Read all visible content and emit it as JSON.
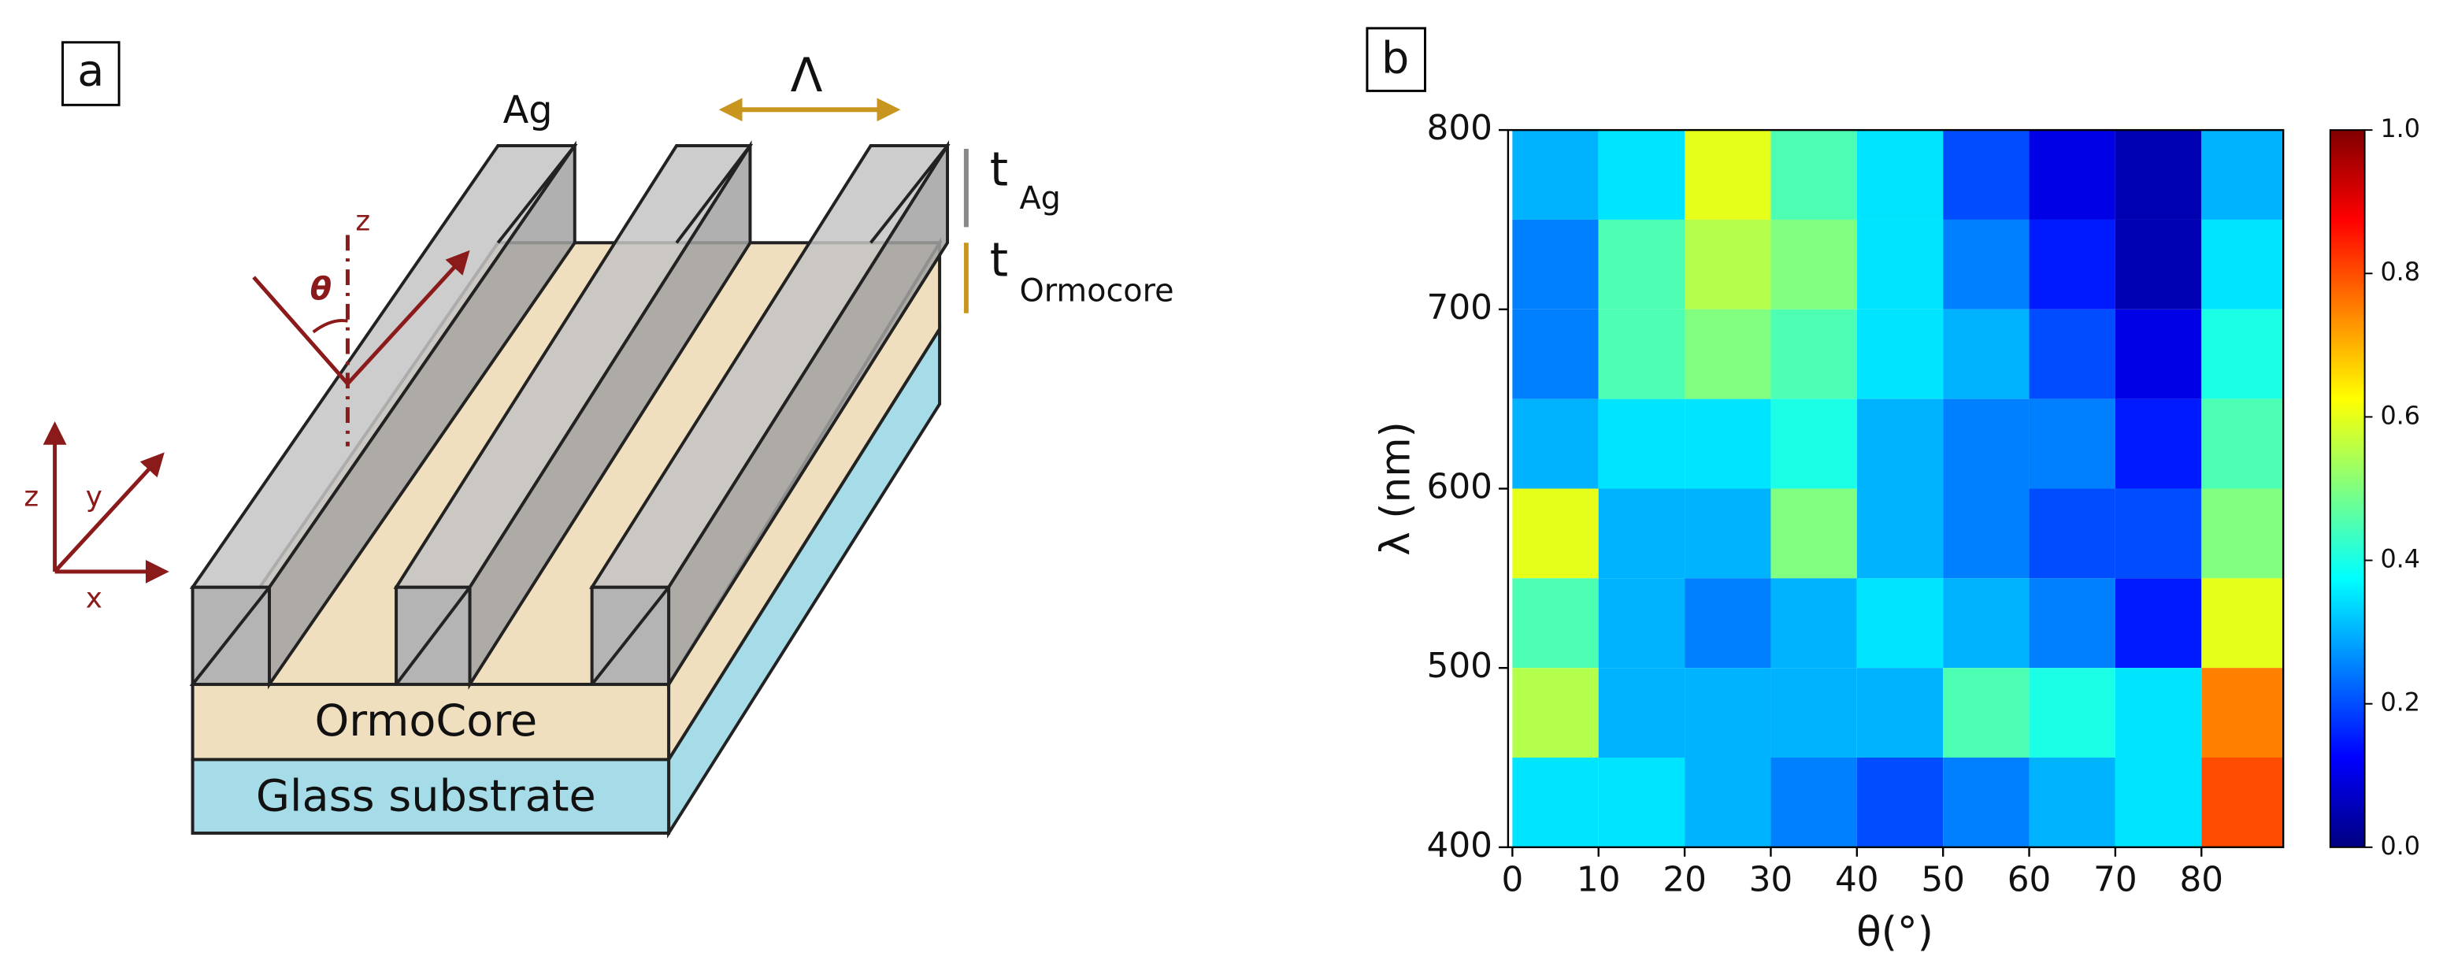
{
  "panel_a": {
    "label": "a",
    "metal": "Ag",
    "period": "Λ",
    "t_ag": {
      "t": "t",
      "sub": "Ag"
    },
    "t_ormocore": {
      "t": "t",
      "sub": "Ormocore"
    },
    "normal_axis": "z",
    "angle": "θ",
    "axes": {
      "z": "z",
      "y": "y",
      "x": "x"
    },
    "layer_top": "OrmoCore",
    "layer_bottom": "Glass substrate"
  },
  "chart_data": {
    "type": "heatmap",
    "label": "b",
    "xlabel": "θ(°)",
    "ylabel": "λ (nm)",
    "x": [
      5,
      15,
      25,
      35,
      45,
      55,
      65,
      75,
      85
    ],
    "y": [
      775,
      725,
      675,
      625,
      575,
      525,
      475,
      425
    ],
    "z": [
      [
        0.3,
        0.35,
        0.6,
        0.45,
        0.35,
        0.2,
        0.1,
        0.05,
        0.3
      ],
      [
        0.25,
        0.45,
        0.55,
        0.5,
        0.35,
        0.25,
        0.15,
        0.05,
        0.35
      ],
      [
        0.25,
        0.45,
        0.5,
        0.45,
        0.35,
        0.3,
        0.2,
        0.1,
        0.4
      ],
      [
        0.3,
        0.35,
        0.35,
        0.4,
        0.3,
        0.25,
        0.25,
        0.15,
        0.45
      ],
      [
        0.6,
        0.3,
        0.3,
        0.5,
        0.3,
        0.25,
        0.2,
        0.2,
        0.5
      ],
      [
        0.45,
        0.3,
        0.25,
        0.3,
        0.35,
        0.3,
        0.25,
        0.15,
        0.6
      ],
      [
        0.55,
        0.3,
        0.3,
        0.3,
        0.3,
        0.45,
        0.4,
        0.35,
        0.75
      ],
      [
        0.35,
        0.35,
        0.3,
        0.25,
        0.2,
        0.25,
        0.3,
        0.35,
        0.8
      ]
    ],
    "cell": [
      10,
      50
    ],
    "xlim": [
      -0.5,
      89.5
    ],
    "ylim": [
      400,
      800
    ],
    "xticks": [
      0,
      10,
      20,
      30,
      40,
      50,
      60,
      70,
      80
    ],
    "yticks": [
      400,
      500,
      600,
      700,
      800
    ],
    "colormap": "jet",
    "clim": [
      0,
      1
    ],
    "cticks": [
      {
        "value": 0,
        "label": "0.0"
      },
      0.2,
      0.4,
      0.6,
      0.8,
      {
        "value": 1,
        "label": "1.0"
      }
    ]
  }
}
